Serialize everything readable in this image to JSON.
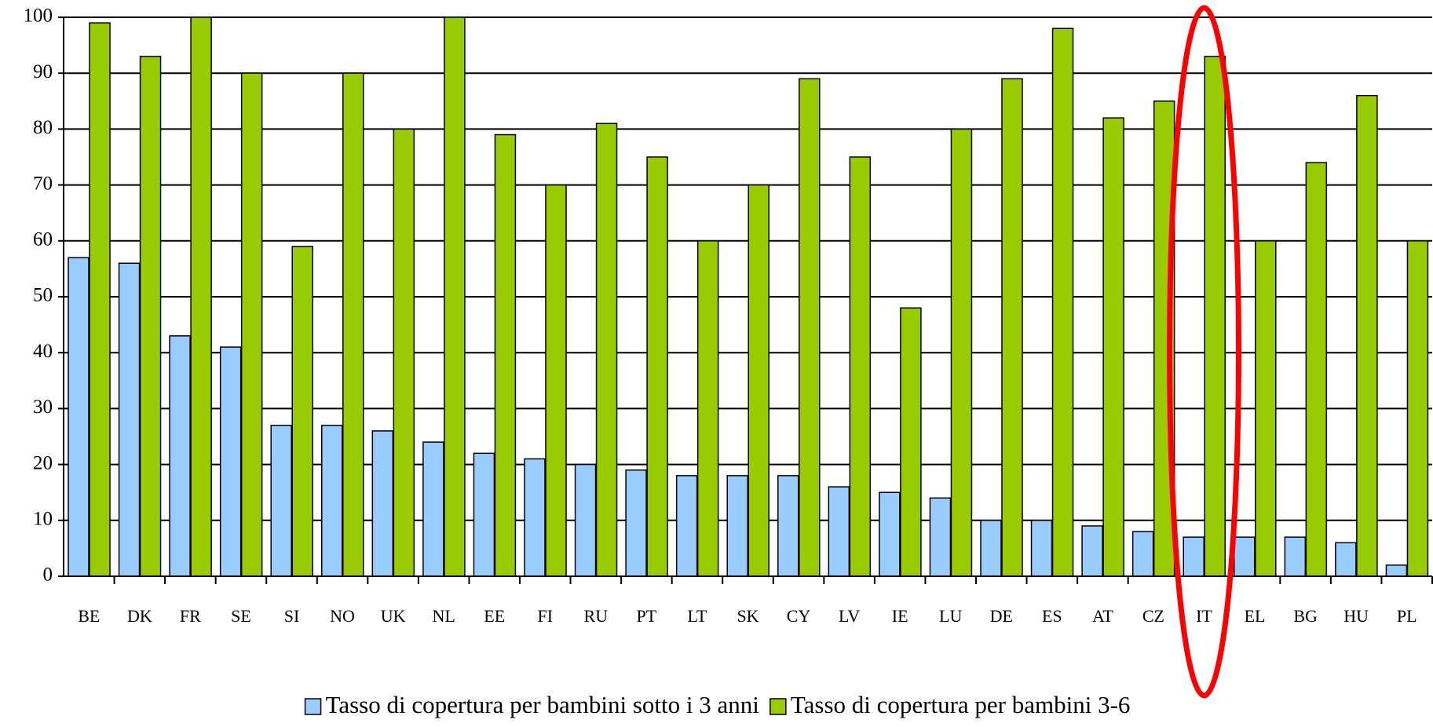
{
  "chart_data": {
    "type": "bar",
    "categories": [
      "BE",
      "DK",
      "FR",
      "SE",
      "SI",
      "NO",
      "UK",
      "NL",
      "EE",
      "FI",
      "RU",
      "PT",
      "LT",
      "SK",
      "CY",
      "LV",
      "IE",
      "LU",
      "DE",
      "ES",
      "AT",
      "CZ",
      "IT",
      "EL",
      "BG",
      "HU",
      "PL"
    ],
    "series": [
      {
        "name": "Tasso di copertura per bambini sotto i 3 anni",
        "color": "#99ccff",
        "values": [
          57,
          56,
          43,
          41,
          27,
          27,
          26,
          24,
          22,
          21,
          20,
          19,
          18,
          18,
          18,
          16,
          15,
          14,
          10,
          10,
          9,
          8,
          7,
          7,
          7,
          6,
          2
        ]
      },
      {
        "name": "Tasso di copertura per bambini 3-6",
        "color": "#99cc00",
        "values": [
          99,
          93,
          100,
          90,
          59,
          90,
          80,
          100,
          79,
          70,
          81,
          75,
          60,
          70,
          89,
          75,
          48,
          80,
          89,
          98,
          82,
          85,
          93,
          60,
          74,
          86,
          60
        ]
      }
    ],
    "ylim": [
      0,
      100
    ],
    "yticks": [
      0,
      10,
      20,
      30,
      40,
      50,
      60,
      70,
      80,
      90,
      100
    ],
    "grid": true
  }
}
